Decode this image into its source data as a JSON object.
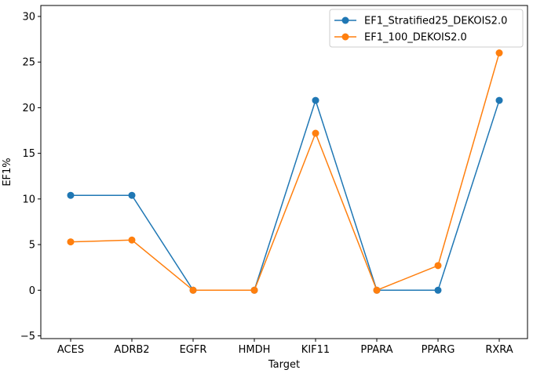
{
  "chart_data": {
    "type": "line",
    "xlabel": "Target",
    "ylabel": "EF1%",
    "categories": [
      "ACES",
      "ADRB2",
      "EGFR",
      "HMDH",
      "KIF11",
      "PPARA",
      "PPARG",
      "RXRA"
    ],
    "ylim": [
      -5.3,
      31.2
    ],
    "yticks": [
      -5,
      0,
      5,
      10,
      15,
      20,
      25,
      30
    ],
    "legend_position": "top-right",
    "grid": false,
    "series": [
      {
        "name": "EF1_Stratified25_DEKOIS2.0",
        "color": "#1f77b4",
        "values": [
          10.4,
          10.4,
          0,
          0,
          20.8,
          0,
          0,
          20.8
        ]
      },
      {
        "name": "EF1_100_DEKOIS2.0",
        "color": "#ff7f0e",
        "values": [
          5.3,
          5.5,
          0,
          0,
          17.2,
          0,
          2.7,
          26.0
        ]
      }
    ]
  }
}
